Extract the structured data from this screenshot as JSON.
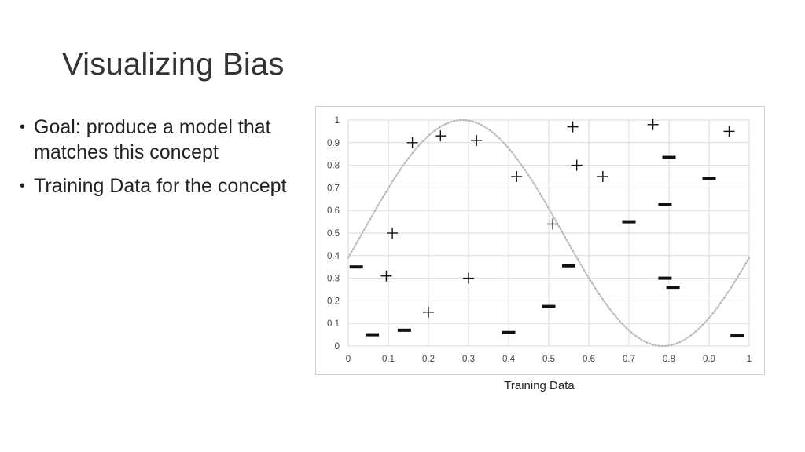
{
  "slide": {
    "title": "Visualizing Bias",
    "bullets": [
      "Goal: produce a model that matches this concept",
      "Training Data for the concept"
    ],
    "caption": "Training Data"
  },
  "chart_data": {
    "type": "scatter",
    "xlim": [
      0,
      1
    ],
    "ylim": [
      0,
      1
    ],
    "x_ticks": [
      "0",
      "0.1",
      "0.2",
      "0.3",
      "0.4",
      "0.5",
      "0.6",
      "0.7",
      "0.8",
      "0.9",
      "1"
    ],
    "y_ticks": [
      "0",
      "0.1",
      "0.2",
      "0.3",
      "0.4",
      "0.5",
      "0.6",
      "0.7",
      "0.8",
      "0.9",
      "1"
    ],
    "grid": true,
    "series": [
      {
        "marker": "plus",
        "color": "#111111",
        "points": [
          {
            "x": 0.095,
            "y": 0.31
          },
          {
            "x": 0.11,
            "y": 0.5
          },
          {
            "x": 0.16,
            "y": 0.9
          },
          {
            "x": 0.2,
            "y": 0.15
          },
          {
            "x": 0.23,
            "y": 0.93
          },
          {
            "x": 0.3,
            "y": 0.3
          },
          {
            "x": 0.32,
            "y": 0.91
          },
          {
            "x": 0.42,
            "y": 0.75
          },
          {
            "x": 0.51,
            "y": 0.54
          },
          {
            "x": 0.56,
            "y": 0.97
          },
          {
            "x": 0.57,
            "y": 0.8
          },
          {
            "x": 0.635,
            "y": 0.75
          },
          {
            "x": 0.76,
            "y": 0.98
          },
          {
            "x": 0.95,
            "y": 0.95
          }
        ]
      },
      {
        "marker": "dash",
        "color": "#111111",
        "points": [
          {
            "x": 0.02,
            "y": 0.35
          },
          {
            "x": 0.06,
            "y": 0.05
          },
          {
            "x": 0.14,
            "y": 0.07
          },
          {
            "x": 0.4,
            "y": 0.06
          },
          {
            "x": 0.5,
            "y": 0.175
          },
          {
            "x": 0.55,
            "y": 0.355
          },
          {
            "x": 0.7,
            "y": 0.55
          },
          {
            "x": 0.79,
            "y": 0.625
          },
          {
            "x": 0.79,
            "y": 0.3
          },
          {
            "x": 0.8,
            "y": 0.835
          },
          {
            "x": 0.81,
            "y": 0.26
          },
          {
            "x": 0.9,
            "y": 0.74
          },
          {
            "x": 0.97,
            "y": 0.045
          }
        ]
      }
    ],
    "concept_curve": {
      "style": "dotted",
      "color": "#b8b8b8",
      "equation": "y = 0.5 + 0.5*sin(2*pi*(x - 0.035))"
    }
  }
}
